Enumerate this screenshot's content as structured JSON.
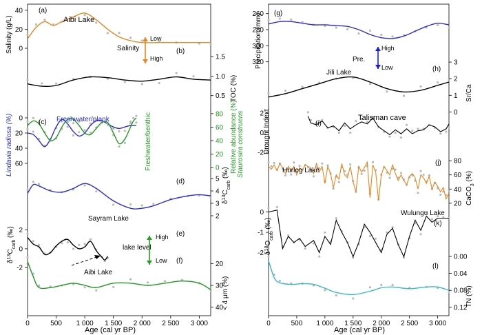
{
  "figure": {
    "x_axis_label": "Age (cal yr BP)",
    "x_ticks": [
      "0",
      "500",
      "1 000",
      "1 500",
      "2 000",
      "2 500",
      "3 000"
    ]
  },
  "colors": {
    "orange": "#e8861a",
    "black": "#000000",
    "blue": "#2b2bd6",
    "green": "#1f9a1f",
    "cyan": "#36b8c8",
    "gray": "#b9b9b9",
    "arrow_orange": "#e8861a",
    "arrow_blue": "#1a1ae0",
    "arrow_green": "#22a022"
  },
  "left_panels": {
    "a": {
      "letter": "(a)",
      "name": "Aibi Lake",
      "ylabel": "Salinity (g/L)",
      "ticks": [
        "0",
        "20",
        "40"
      ],
      "arrow_top": "Low",
      "arrow_bottom": "High",
      "arrow_label": "Salinity"
    },
    "b": {
      "letter": "(b)",
      "ylabel": "TOC (%)",
      "ticks": [
        "1.5",
        "1.0",
        "0.5"
      ]
    },
    "c": {
      "letter": "(c)",
      "label_fp": "Freshwater/plank",
      "label_fb": "Freshwater/benthic",
      "ylabel_left": "Lindavia radiosa (%)",
      "ylabel_right1": "Staurosira construens",
      "ylabel_right2": "Relative abundance (%)",
      "ticks_left": [
        "60",
        "40",
        "20",
        "0"
      ],
      "ticks_right": [
        "80",
        "60",
        "40",
        "20",
        "0"
      ]
    },
    "d": {
      "letter": "(d)",
      "ylabel": "δ13Ccarb (‰)",
      "ylabel_main": "δ",
      "ylabel_sup": "13",
      "ylabel_c": "C",
      "ylabel_sub": "carb",
      "ylabel_unit": " (‰)",
      "ticks": [
        "2",
        "3",
        "4",
        "5"
      ]
    },
    "e": {
      "letter": "(e)",
      "name": "Sayram Lake",
      "ylabel_main": "δ",
      "ylabel_sup": "13",
      "ylabel_c": "C",
      "ylabel_sub": "carb",
      "ylabel_unit": " (‰)",
      "ticks": [
        "-2",
        "0",
        "2"
      ],
      "arrow_top": "High",
      "arrow_bottom": "Low",
      "arrow_label": "lake level"
    },
    "f": {
      "letter": "(f)",
      "name": "Aibi Lake",
      "ylabel": "< 4 μm (%)",
      "ticks": [
        "40",
        "30",
        "20"
      ]
    }
  },
  "right_panels": {
    "g": {
      "letter": "(g)",
      "ylabel": "Precipitation (mm)",
      "ticks": [
        "320",
        "300",
        "280",
        "260"
      ],
      "arrow_top": "High",
      "arrow_bottom": "Low",
      "arrow_label": "Pre."
    },
    "h": {
      "letter": "(h)",
      "name": "Jili Lake",
      "ylabel": "Sr/Ca",
      "ticks": [
        "0",
        "1",
        "2",
        "3"
      ]
    },
    "i": {
      "letter": "(i)",
      "name": "Talisman cave",
      "ylabel": "Drought Indext",
      "ticks": [
        "-2",
        "0",
        "2"
      ]
    },
    "j": {
      "letter": "(j)",
      "name": "Hurleg Lake",
      "ylabel": "CaCO3 (%)",
      "ylabel_main": "CaCO",
      "ylabel_sub": "3",
      "ylabel_unit": " (%)",
      "ticks": [
        "20",
        "40",
        "60",
        "80"
      ]
    },
    "k": {
      "letter": "(k)",
      "name": "Wulungu Lake",
      "ylabel_main": "δ",
      "ylabel_sup": "18",
      "ylabel_c": "O",
      "ylabel_sub": "carb",
      "ylabel_unit": " (‰)",
      "ticks": [
        "-2",
        "-1",
        "0"
      ]
    },
    "l": {
      "letter": "(l)",
      "ylabel": "TN (%)",
      "ticks": [
        "0.12",
        "0.08",
        "0.04",
        "0.00"
      ]
    }
  },
  "chart_data": [
    {
      "panel": "a",
      "type": "line",
      "ylim": [
        45,
        0
      ],
      "series": [
        {
          "x": [
            0,
            150,
            300,
            450,
            600,
            800,
            1000,
            1200,
            1400,
            1600,
            1800,
            2000,
            2300,
            2600,
            3000,
            3200
          ],
          "values": [
            10,
            22,
            28,
            24,
            28,
            33,
            37,
            30,
            20,
            12,
            8,
            6,
            6,
            6,
            6,
            6
          ]
        }
      ]
    },
    {
      "panel": "b",
      "type": "line",
      "ylim": [
        1.75,
        0.3
      ],
      "series": [
        {
          "x": [
            0,
            250,
            500,
            800,
            1100,
            1400,
            1700,
            2000,
            2300,
            2600,
            2900,
            3200
          ],
          "values": [
            0.8,
            0.74,
            0.76,
            0.9,
            0.98,
            0.96,
            0.9,
            0.87,
            0.92,
            0.98,
            0.92,
            0.9
          ]
        }
      ]
    },
    {
      "panel": "c",
      "type": "line",
      "ylim": [
        -10,
        70
      ],
      "series": [
        {
          "name": "Freshwater/plank",
          "x": [
            0,
            100,
            200,
            300,
            400,
            500,
            600,
            700,
            800,
            900,
            1000,
            1100,
            1200,
            1300,
            1400,
            1500,
            1600,
            1700,
            1800,
            1900
          ],
          "values": [
            20,
            22,
            30,
            38,
            28,
            12,
            2,
            8,
            18,
            24,
            20,
            10,
            4,
            4,
            8,
            12,
            14,
            12,
            10,
            10
          ]
        },
        {
          "name": "Freshwater/benthic",
          "x": [
            0,
            100,
            200,
            300,
            400,
            500,
            600,
            700,
            800,
            900,
            1000,
            1100,
            1200,
            1300,
            1400,
            1500,
            1600,
            1700,
            1800,
            1850,
            1900
          ],
          "values": [
            10,
            4,
            8,
            20,
            30,
            26,
            12,
            2,
            2,
            10,
            20,
            22,
            14,
            6,
            6,
            20,
            34,
            28,
            12,
            4,
            0
          ]
        }
      ]
    },
    {
      "panel": "d",
      "type": "line",
      "ylim": [
        5.5,
        1.5
      ],
      "series": [
        {
          "x": [
            0,
            100,
            200,
            400,
            600,
            800,
            1000,
            1200,
            1500,
            1800,
            2000,
            2200,
            2500,
            2800,
            3000,
            3200
          ],
          "values": [
            3.8,
            4.5,
            4.4,
            4.0,
            3.9,
            4.2,
            4.6,
            4.2,
            3.2,
            2.6,
            2.6,
            2.8,
            3.3,
            3.6,
            3.7,
            3.6
          ]
        }
      ]
    },
    {
      "panel": "e",
      "type": "line",
      "ylim": [
        3,
        -2.5
      ],
      "series": [
        {
          "x": [
            0,
            100,
            200,
            300,
            400,
            500,
            600,
            700,
            800,
            900,
            1000,
            1100,
            1200,
            1300,
            1350,
            1400
          ],
          "values": [
            1.2,
            0.5,
            0.2,
            -0.6,
            -0.4,
            0.3,
            0.8,
            1.0,
            0.4,
            0.0,
            0.2,
            0.8,
            -0.2,
            -0.9,
            -1.2,
            -0.8
          ]
        }
      ]
    },
    {
      "panel": "f",
      "type": "line",
      "ylim": [
        18,
        42
      ],
      "series": [
        {
          "x": [
            0,
            100,
            200,
            400,
            600,
            800,
            1000,
            1200,
            1500,
            1800,
            2100,
            2400,
            2700,
            3000,
            3200
          ],
          "values": [
            19,
            26,
            31,
            31,
            30,
            29,
            30,
            31,
            29,
            29,
            30,
            29,
            28,
            29,
            32
          ]
        }
      ]
    },
    {
      "panel": "g",
      "type": "line",
      "ylim": [
        250,
        322
      ],
      "series": [
        {
          "x": [
            0,
            200,
            400,
            600,
            800,
            1000,
            1200,
            1400,
            1600,
            1800,
            2000,
            2200,
            2400,
            2600,
            2800,
            3000,
            3200
          ],
          "values": [
            273,
            270,
            270,
            272,
            274,
            274,
            275,
            276,
            280,
            286,
            290,
            291,
            288,
            282,
            276,
            272,
            274
          ]
        }
      ]
    },
    {
      "panel": "h",
      "type": "line",
      "ylim": [
        3.5,
        -0.4
      ],
      "series": [
        {
          "x": [
            0,
            300,
            600,
            900,
            1200,
            1500,
            1800,
            2100,
            2400,
            2700,
            3000,
            3200
          ],
          "values": [
            0.9,
            1.1,
            1.4,
            1.7,
            2.0,
            2.1,
            1.8,
            1.4,
            1.2,
            1.3,
            1.6,
            1.8
          ]
        }
      ]
    },
    {
      "panel": "i",
      "type": "line",
      "ylim": [
        3,
        -2.5
      ],
      "series": [
        {
          "x": [
            700,
            750,
            850,
            950,
            1050,
            1150,
            1250,
            1350,
            1450,
            1550,
            1650,
            1750,
            1850,
            1950,
            2050,
            2150,
            2250,
            2350,
            2450,
            2550,
            2650,
            2750,
            2850,
            2950,
            3050,
            3150,
            3200
          ],
          "values": [
            1.7,
            1.0,
            0.8,
            1.2,
            0.5,
            0.7,
            0.2,
            1.0,
            0.4,
            0.8,
            1.1,
            0.9,
            1.5,
            0.6,
            0.2,
            -0.2,
            0.3,
            -0.1,
            0.4,
            -0.1,
            0.2,
            0.3,
            0.8,
            0.6,
            0.1,
            0.4,
            0.9
          ]
        }
      ]
    },
    {
      "panel": "j",
      "type": "line",
      "ylim": [
        85,
        15
      ],
      "series": [
        {
          "x": [
            0,
            50,
            100,
            150,
            200,
            250,
            300,
            350,
            400,
            450,
            500,
            550,
            600,
            650,
            700,
            750,
            800,
            850,
            900,
            950,
            1000,
            1050,
            1100,
            1150,
            1200,
            1250,
            1300,
            1350,
            1400,
            1450,
            1500,
            1550,
            1600,
            1650,
            1700,
            1750,
            1800,
            1850,
            1900,
            1950,
            2000,
            2050,
            2100,
            2150,
            2200,
            2250,
            2300,
            2350,
            2400,
            2450,
            2500,
            2550,
            2600,
            2650,
            2700,
            2750,
            2800,
            2850,
            2900,
            2950,
            3000,
            3050,
            3100,
            3150,
            3200
          ],
          "values": [
            72,
            68,
            74,
            66,
            76,
            70,
            62,
            72,
            66,
            72,
            60,
            70,
            66,
            74,
            72,
            70,
            62,
            76,
            64,
            72,
            48,
            72,
            62,
            42,
            60,
            54,
            76,
            60,
            56,
            72,
            50,
            36,
            72,
            64,
            70,
            78,
            28,
            74,
            64,
            24,
            60,
            72,
            66,
            60,
            74,
            62,
            52,
            60,
            52,
            46,
            58,
            62,
            56,
            40,
            60,
            56,
            48,
            58,
            40,
            50,
            44,
            36,
            42,
            26,
            34
          ]
        }
      ]
    },
    {
      "panel": "k",
      "type": "line",
      "ylim": [
        0.6,
        -2.8
      ],
      "series": [
        {
          "x": [
            0,
            150,
            250,
            350,
            450,
            550,
            650,
            800,
            900,
            1000,
            1100,
            1200,
            1300,
            1400,
            1500,
            1600,
            1700,
            1800,
            1900,
            2000,
            2100,
            2200,
            2300,
            2400,
            2500,
            2600,
            2700,
            2800,
            2900,
            3000,
            3100,
            3200
          ],
          "values": [
            0.0,
            0.1,
            -1.8,
            -1.2,
            -1.5,
            -1.3,
            -1.7,
            -1.4,
            -2.0,
            -1.2,
            -1.6,
            -0.4,
            -1.0,
            -1.5,
            -2.2,
            -1.5,
            -0.6,
            -1.0,
            -1.5,
            -2.0,
            -1.1,
            -0.8,
            -1.6,
            -2.2,
            -1.2,
            -0.4,
            -0.9,
            -0.2,
            -0.5,
            -0.3,
            -0.3,
            -0.3
          ]
        }
      ]
    },
    {
      "panel": "l",
      "type": "line",
      "ylim": [
        0,
        0.13
      ],
      "series": [
        {
          "x": [
            0,
            100,
            200,
            400,
            600,
            800,
            1000,
            1200,
            1500,
            1800,
            2000,
            2200,
            2500,
            2800,
            3000,
            3200
          ],
          "values": [
            0.01,
            0.05,
            0.062,
            0.066,
            0.064,
            0.066,
            0.075,
            0.085,
            0.09,
            0.082,
            0.074,
            0.072,
            0.076,
            0.072,
            0.072,
            0.08
          ]
        }
      ]
    }
  ]
}
